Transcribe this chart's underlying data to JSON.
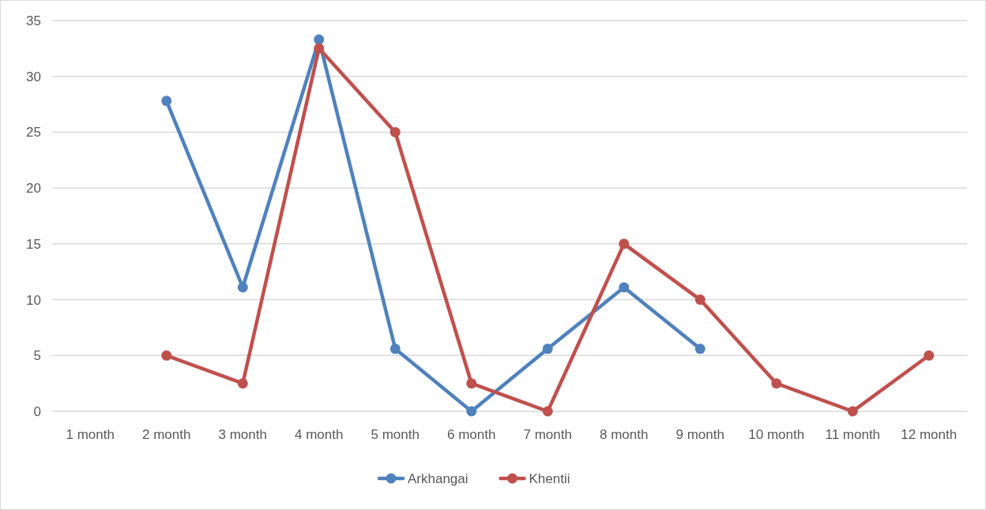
{
  "chart_data": {
    "type": "line",
    "categories": [
      "1 month",
      "2 month",
      "3 month",
      "4 month",
      "5 month",
      "6 month",
      "7 month",
      "8 month",
      "9 month",
      "10 month",
      "11 month",
      "12 month"
    ],
    "series": [
      {
        "name": "Arkhangai",
        "color": "#4f81bd",
        "values": [
          null,
          27.8,
          11.1,
          33.3,
          5.6,
          0,
          5.6,
          11.1,
          5.6,
          null,
          null,
          null
        ]
      },
      {
        "name": "Khentii",
        "color": "#c0504d",
        "values": [
          null,
          5,
          2.5,
          32.5,
          25,
          2.5,
          0,
          15,
          10,
          2.5,
          0,
          5
        ]
      }
    ],
    "ylim": [
      0,
      35
    ],
    "yticks": [
      0,
      5,
      10,
      15,
      20,
      25,
      30,
      35
    ],
    "grid": "y",
    "legend": "bottom",
    "marker": "circle",
    "line_style": "solid"
  }
}
